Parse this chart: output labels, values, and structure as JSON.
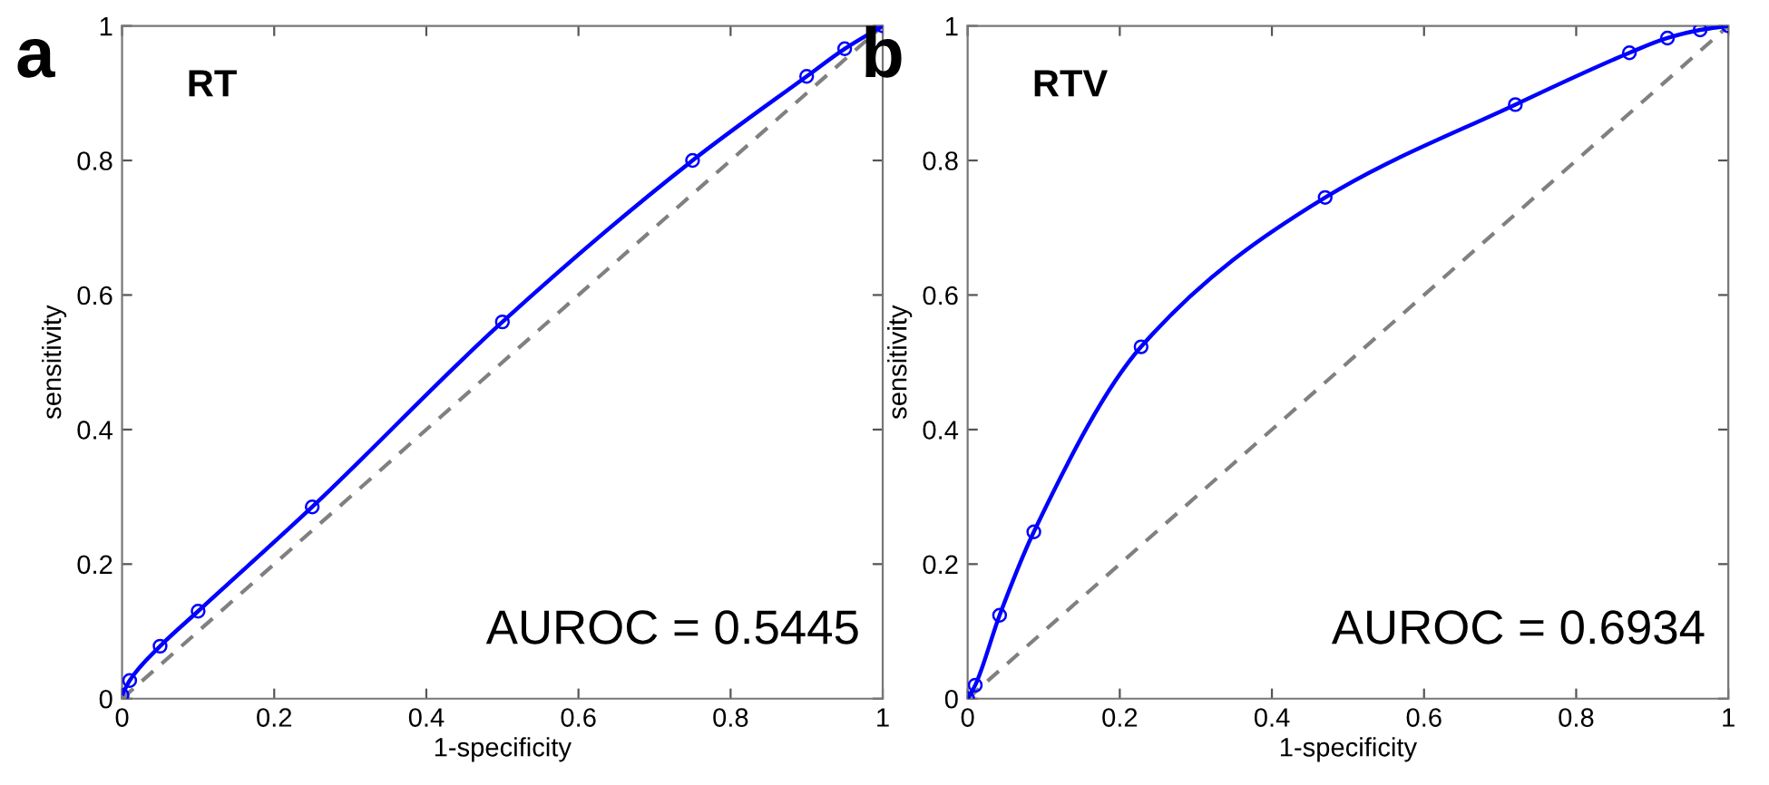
{
  "chart_data": [
    {
      "type": "line",
      "title": "a",
      "subtitle": "RT",
      "xlabel": "1-specificity",
      "ylabel": "sensitivity",
      "xlim": [
        0,
        1
      ],
      "ylim": [
        0,
        1
      ],
      "xticks": [
        0,
        0.2,
        0.4,
        0.6,
        0.8,
        1
      ],
      "yticks": [
        0,
        0.2,
        0.4,
        0.6,
        0.8,
        1
      ],
      "grid": false,
      "legend": false,
      "annotations": [
        "AUROC = 0.5445"
      ],
      "series": [
        {
          "color": "#0000ff",
          "marker": "circle",
          "line_style": "solid",
          "x": [
            0,
            0.01,
            0.05,
            0.1,
            0.25,
            0.5,
            0.75,
            0.9,
            0.95,
            1
          ],
          "values": [
            0.005,
            0.027,
            0.078,
            0.13,
            0.285,
            0.56,
            0.8,
            0.925,
            0.966,
            1
          ]
        },
        {
          "color": "#808080",
          "marker": "none",
          "line_style": "dashed",
          "x": [
            0,
            1
          ],
          "values": [
            0,
            1
          ]
        }
      ]
    },
    {
      "type": "line",
      "title": "b",
      "subtitle": "RTV",
      "xlabel": "1-specificity",
      "ylabel": "sensitivity",
      "xlim": [
        0,
        1
      ],
      "ylim": [
        0,
        1
      ],
      "xticks": [
        0,
        0.2,
        0.4,
        0.6,
        0.8,
        1
      ],
      "yticks": [
        0,
        0.2,
        0.4,
        0.6,
        0.8,
        1
      ],
      "grid": false,
      "legend": false,
      "annotations": [
        "AUROC = 0.6934"
      ],
      "series": [
        {
          "color": "#0000ff",
          "marker": "circle",
          "line_style": "solid",
          "x": [
            0,
            0.01,
            0.042,
            0.087,
            0.228,
            0.47,
            0.72,
            0.87,
            0.92,
            0.963,
            1
          ],
          "values": [
            0,
            0.02,
            0.124,
            0.248,
            0.523,
            0.745,
            0.883,
            0.96,
            0.982,
            0.994,
            1
          ]
        },
        {
          "color": "#808080",
          "marker": "none",
          "line_style": "dashed",
          "x": [
            0,
            1
          ],
          "values": [
            0,
            1
          ]
        }
      ]
    }
  ]
}
